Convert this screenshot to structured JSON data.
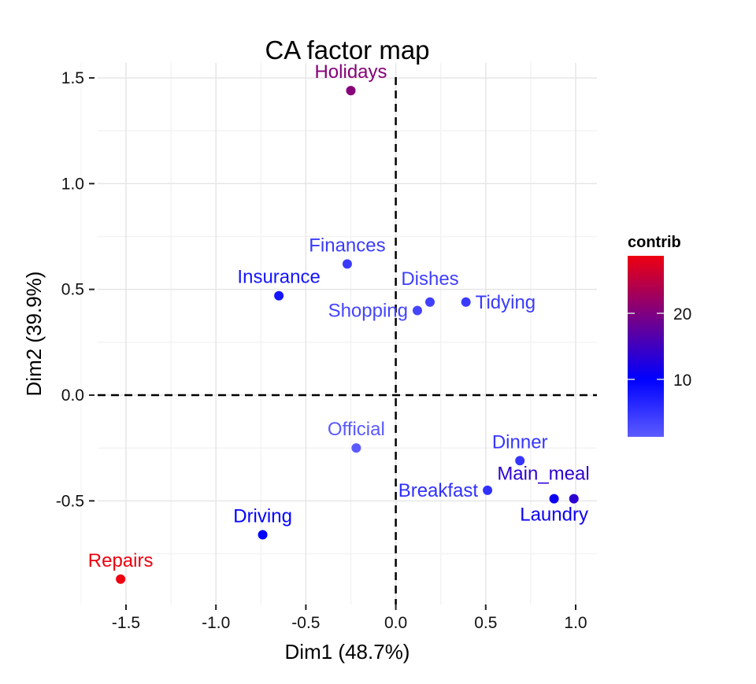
{
  "chart_data": {
    "type": "scatter",
    "title": "CA factor map",
    "xlabel": "Dim1 (48.7%)",
    "ylabel": "Dim2 (39.9%)",
    "xlim": [
      -1.65,
      1.12
    ],
    "ylim": [
      -0.98,
      1.57
    ],
    "xticks": [
      -1.5,
      -1.0,
      -0.5,
      0.0,
      0.5,
      1.0
    ],
    "xtick_labels": [
      "-1.5",
      "-1.0",
      "-0.5",
      "0.0",
      "0.5",
      "1.0"
    ],
    "yticks": [
      -0.5,
      0.0,
      0.5,
      1.0,
      1.5
    ],
    "ytick_labels": [
      "-0.5",
      "0.0",
      "0.5",
      "1.0",
      "1.5"
    ],
    "grid": true,
    "reference_lines": {
      "x": 0,
      "y": 0,
      "style": "dashed"
    },
    "points": [
      {
        "label": "Holidays",
        "x": -0.25,
        "y": 1.44,
        "contrib": 20.5
      },
      {
        "label": "Finances",
        "x": -0.27,
        "y": 0.62,
        "contrib": 4.5
      },
      {
        "label": "Insurance",
        "x": -0.65,
        "y": 0.47,
        "contrib": 8.0
      },
      {
        "label": "Dishes",
        "x": 0.19,
        "y": 0.44,
        "contrib": 4.0
      },
      {
        "label": "Tidying",
        "x": 0.39,
        "y": 0.44,
        "contrib": 4.5
      },
      {
        "label": "Shopping",
        "x": 0.12,
        "y": 0.4,
        "contrib": 3.5
      },
      {
        "label": "Official",
        "x": -0.22,
        "y": -0.25,
        "contrib": 1.5
      },
      {
        "label": "Dinner",
        "x": 0.69,
        "y": -0.31,
        "contrib": 5.0
      },
      {
        "label": "Breakfast",
        "x": 0.51,
        "y": -0.45,
        "contrib": 5.5
      },
      {
        "label": "Laundry",
        "x": 0.88,
        "y": -0.49,
        "contrib": 11.0
      },
      {
        "label": "Main_meal",
        "x": 0.99,
        "y": -0.49,
        "contrib": 13.5
      },
      {
        "label": "Driving",
        "x": -0.74,
        "y": -0.66,
        "contrib": 10.0
      },
      {
        "label": "Repairs",
        "x": -1.53,
        "y": -0.87,
        "contrib": 28.7
      }
    ],
    "legend": {
      "title": "contrib",
      "position": "right",
      "range": [
        1.3,
        28.7
      ],
      "ticks": [
        10,
        20
      ],
      "tick_labels": [
        "10",
        "20"
      ],
      "colors": {
        "low": "#5C5CFF",
        "mid": "#0000FF",
        "high": "#EE0010"
      },
      "midpoint": 10
    }
  }
}
